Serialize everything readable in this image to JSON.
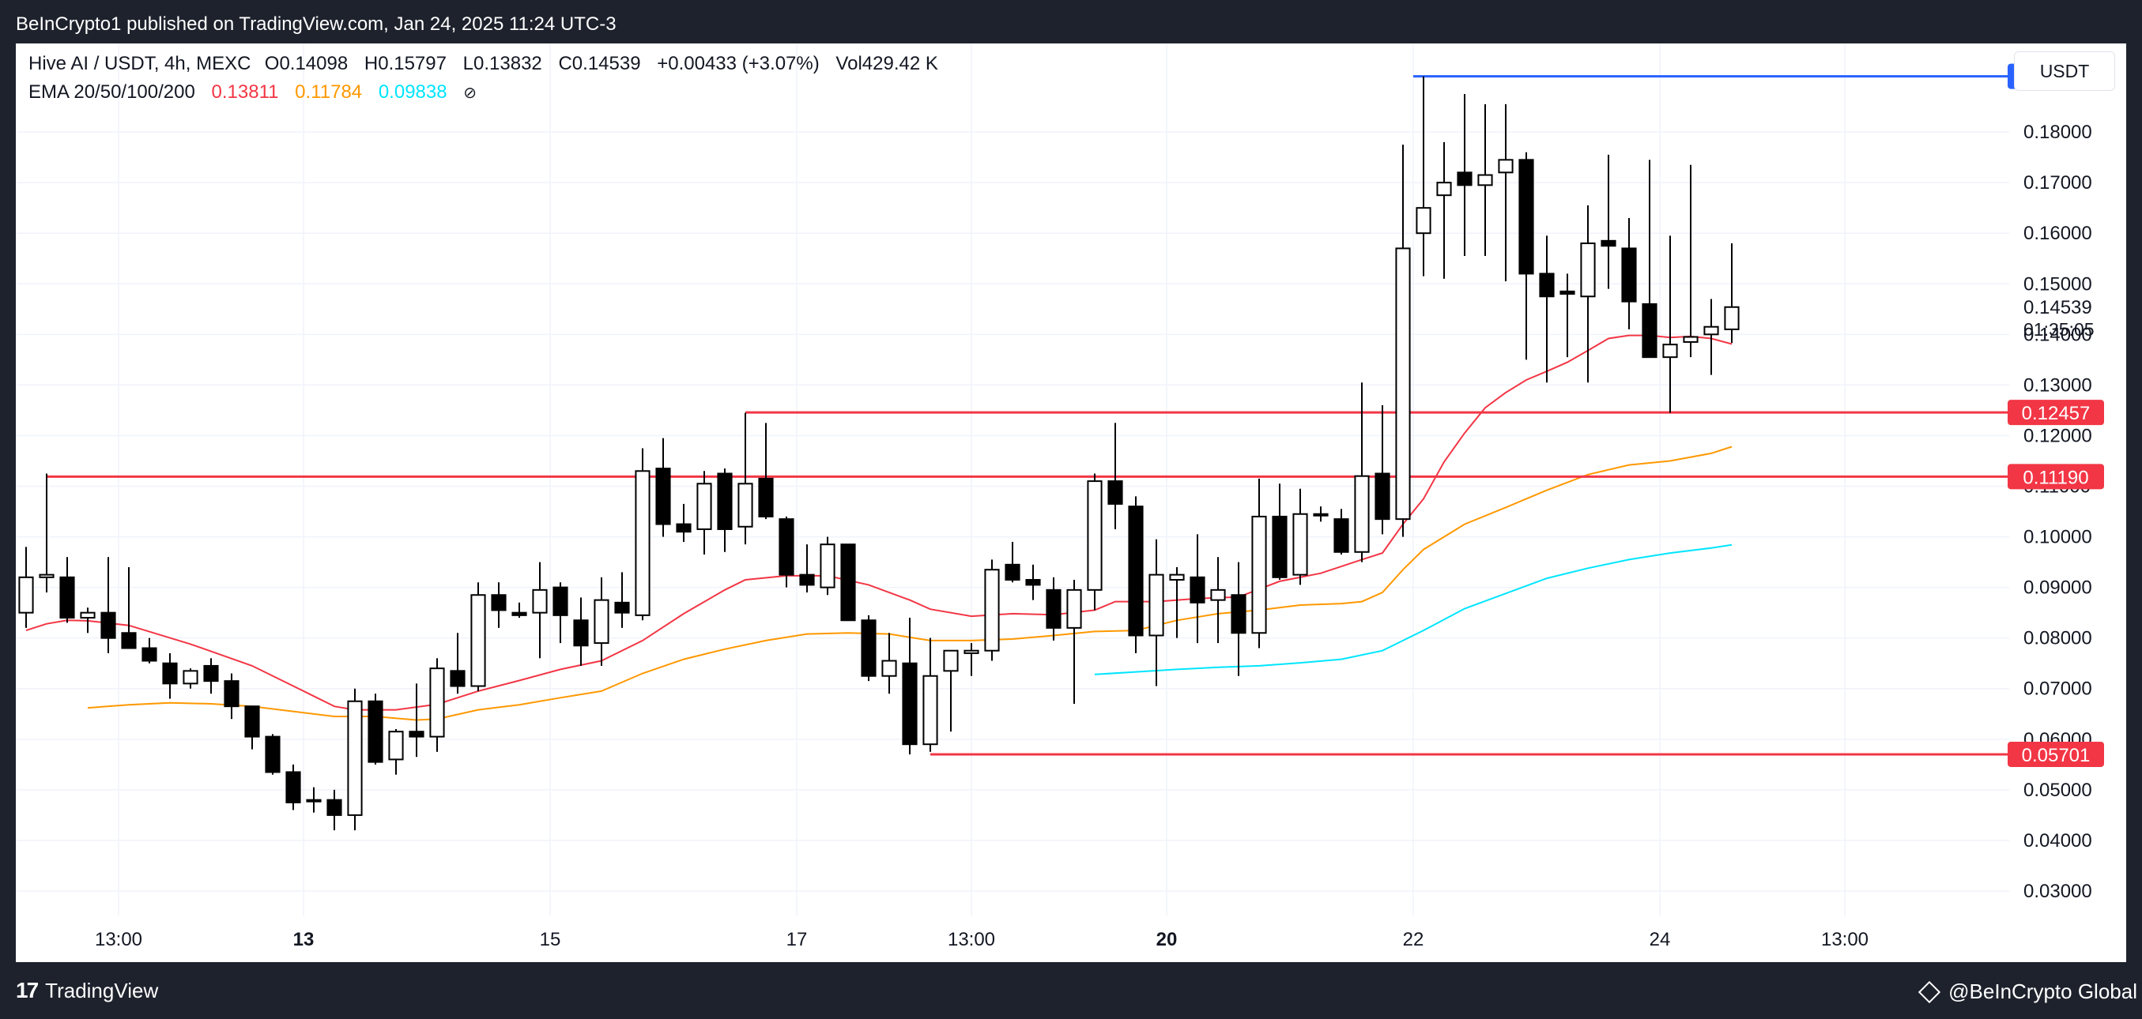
{
  "header": {
    "publisher_line": "BeInCrypto1 published on TradingView.com, Jan 24, 2025 11:24 UTC-3"
  },
  "legend": {
    "symbol": "Hive AI / USDT, 4h, MEXC",
    "open_label": "O",
    "open": "0.14098",
    "high_label": "H",
    "high": "0.15797",
    "low_label": "L",
    "low": "0.13832",
    "close_label": "C",
    "close": "0.14539",
    "change": "+0.00433 (+3.07%)",
    "volume": "Vol429.42 K",
    "ema_label": "EMA 20/50/100/200",
    "ema20": "0.13811",
    "ema50": "0.11784",
    "ema100": "0.09838",
    "ema_visibility_icon": "eye-off-icon"
  },
  "currency_button": "USDT",
  "footer": {
    "left_brand": "TradingView",
    "right_brand": "@BeInCrypto Global"
  },
  "colors": {
    "background": "#1e222d",
    "plot_bg": "#ffffff",
    "grid": "#f0f3fa",
    "candle_up_fill": "#ffffff",
    "candle_down_fill": "#000000",
    "level_red": "#f23645",
    "level_blue": "#2962ff",
    "ema20": "#f23645",
    "ema50": "#ff9800",
    "ema100": "#00e5ff"
  },
  "chart_data": {
    "type": "candlestick",
    "ylim": [
      0.025,
      0.1975
    ],
    "yticks": [
      0.03,
      0.04,
      0.05,
      0.06,
      0.07,
      0.08,
      0.09,
      0.1,
      0.11,
      0.12,
      0.13,
      0.14,
      0.15,
      0.16,
      0.17,
      0.18
    ],
    "ytick_labels": [
      "0.03000",
      "0.04000",
      "0.05000",
      "0.06000",
      "0.07000",
      "0.08000",
      "0.09000",
      "0.10000",
      "0.11000",
      "0.12000",
      "0.13000",
      "0.14000",
      "0.15000",
      "0.16000",
      "0.17000",
      "0.18000"
    ],
    "xticks": [
      {
        "index": 4.5,
        "label": "13:00",
        "bold": false
      },
      {
        "index": 13.5,
        "label": "13",
        "bold": true
      },
      {
        "index": 25.5,
        "label": "15",
        "bold": false
      },
      {
        "index": 37.5,
        "label": "17",
        "bold": false
      },
      {
        "index": 46,
        "label": "13:00",
        "bold": false
      },
      {
        "index": 55.5,
        "label": "20",
        "bold": true
      },
      {
        "index": 67.5,
        "label": "22",
        "bold": false
      },
      {
        "index": 79.5,
        "label": "24",
        "bold": false
      },
      {
        "index": 88.5,
        "label": "13:00",
        "bold": false
      }
    ],
    "n_slots": 97,
    "candles": [
      {
        "i": 0,
        "o": 0.085,
        "h": 0.098,
        "l": 0.082,
        "c": 0.092
      },
      {
        "i": 1,
        "o": 0.092,
        "h": 0.1125,
        "l": 0.089,
        "c": 0.0925
      },
      {
        "i": 2,
        "o": 0.092,
        "h": 0.096,
        "l": 0.083,
        "c": 0.084
      },
      {
        "i": 3,
        "o": 0.084,
        "h": 0.086,
        "l": 0.081,
        "c": 0.085
      },
      {
        "i": 4,
        "o": 0.085,
        "h": 0.096,
        "l": 0.077,
        "c": 0.08
      },
      {
        "i": 5,
        "o": 0.081,
        "h": 0.094,
        "l": 0.078,
        "c": 0.078
      },
      {
        "i": 6,
        "o": 0.078,
        "h": 0.08,
        "l": 0.075,
        "c": 0.0755
      },
      {
        "i": 7,
        "o": 0.075,
        "h": 0.077,
        "l": 0.068,
        "c": 0.071
      },
      {
        "i": 8,
        "o": 0.071,
        "h": 0.074,
        "l": 0.07,
        "c": 0.0735
      },
      {
        "i": 9,
        "o": 0.0745,
        "h": 0.076,
        "l": 0.069,
        "c": 0.0715
      },
      {
        "i": 10,
        "o": 0.0715,
        "h": 0.073,
        "l": 0.064,
        "c": 0.0665
      },
      {
        "i": 11,
        "o": 0.0665,
        "h": 0.0665,
        "l": 0.058,
        "c": 0.0605
      },
      {
        "i": 12,
        "o": 0.0605,
        "h": 0.061,
        "l": 0.053,
        "c": 0.0535
      },
      {
        "i": 13,
        "o": 0.0535,
        "h": 0.055,
        "l": 0.046,
        "c": 0.0475
      },
      {
        "i": 14,
        "o": 0.048,
        "h": 0.0505,
        "l": 0.0455,
        "c": 0.048
      },
      {
        "i": 15,
        "o": 0.048,
        "h": 0.05,
        "l": 0.042,
        "c": 0.045
      },
      {
        "i": 16,
        "o": 0.045,
        "h": 0.07,
        "l": 0.042,
        "c": 0.0675
      },
      {
        "i": 17,
        "o": 0.0675,
        "h": 0.069,
        "l": 0.055,
        "c": 0.0555
      },
      {
        "i": 18,
        "o": 0.056,
        "h": 0.062,
        "l": 0.053,
        "c": 0.0615
      },
      {
        "i": 19,
        "o": 0.0615,
        "h": 0.071,
        "l": 0.0565,
        "c": 0.0605
      },
      {
        "i": 20,
        "o": 0.0605,
        "h": 0.076,
        "l": 0.0575,
        "c": 0.074
      },
      {
        "i": 21,
        "o": 0.0735,
        "h": 0.081,
        "l": 0.069,
        "c": 0.0705
      },
      {
        "i": 22,
        "o": 0.0705,
        "h": 0.091,
        "l": 0.0695,
        "c": 0.0885
      },
      {
        "i": 23,
        "o": 0.0885,
        "h": 0.091,
        "l": 0.082,
        "c": 0.0855
      },
      {
        "i": 24,
        "o": 0.085,
        "h": 0.087,
        "l": 0.084,
        "c": 0.0845
      },
      {
        "i": 25,
        "o": 0.085,
        "h": 0.095,
        "l": 0.076,
        "c": 0.0895
      },
      {
        "i": 26,
        "o": 0.09,
        "h": 0.091,
        "l": 0.079,
        "c": 0.0845
      },
      {
        "i": 27,
        "o": 0.0835,
        "h": 0.088,
        "l": 0.0745,
        "c": 0.0785
      },
      {
        "i": 28,
        "o": 0.079,
        "h": 0.092,
        "l": 0.0745,
        "c": 0.0875
      },
      {
        "i": 29,
        "o": 0.087,
        "h": 0.093,
        "l": 0.082,
        "c": 0.085
      },
      {
        "i": 30,
        "o": 0.0845,
        "h": 0.1175,
        "l": 0.0835,
        "c": 0.113
      },
      {
        "i": 31,
        "o": 0.1135,
        "h": 0.1195,
        "l": 0.1,
        "c": 0.1025
      },
      {
        "i": 32,
        "o": 0.1025,
        "h": 0.1065,
        "l": 0.099,
        "c": 0.101
      },
      {
        "i": 33,
        "o": 0.1015,
        "h": 0.113,
        "l": 0.0965,
        "c": 0.1105
      },
      {
        "i": 34,
        "o": 0.1125,
        "h": 0.1135,
        "l": 0.097,
        "c": 0.1015
      },
      {
        "i": 35,
        "o": 0.102,
        "h": 0.1245,
        "l": 0.0985,
        "c": 0.1105
      },
      {
        "i": 36,
        "o": 0.1115,
        "h": 0.1225,
        "l": 0.1035,
        "c": 0.104
      },
      {
        "i": 37,
        "o": 0.1035,
        "h": 0.104,
        "l": 0.09,
        "c": 0.0925
      },
      {
        "i": 38,
        "o": 0.0925,
        "h": 0.0985,
        "l": 0.089,
        "c": 0.0905
      },
      {
        "i": 39,
        "o": 0.09,
        "h": 0.1,
        "l": 0.0885,
        "c": 0.0985
      },
      {
        "i": 40,
        "o": 0.0985,
        "h": 0.0985,
        "l": 0.0835,
        "c": 0.0835
      },
      {
        "i": 41,
        "o": 0.0835,
        "h": 0.0845,
        "l": 0.0715,
        "c": 0.0725
      },
      {
        "i": 42,
        "o": 0.0725,
        "h": 0.081,
        "l": 0.069,
        "c": 0.0755
      },
      {
        "i": 43,
        "o": 0.075,
        "h": 0.084,
        "l": 0.057,
        "c": 0.059
      },
      {
        "i": 44,
        "o": 0.059,
        "h": 0.08,
        "l": 0.0575,
        "c": 0.0725
      },
      {
        "i": 45,
        "o": 0.0735,
        "h": 0.0775,
        "l": 0.0615,
        "c": 0.0775
      },
      {
        "i": 46,
        "o": 0.077,
        "h": 0.079,
        "l": 0.0725,
        "c": 0.0775
      },
      {
        "i": 47,
        "o": 0.0775,
        "h": 0.0955,
        "l": 0.0755,
        "c": 0.0935
      },
      {
        "i": 48,
        "o": 0.0945,
        "h": 0.099,
        "l": 0.091,
        "c": 0.0915
      },
      {
        "i": 49,
        "o": 0.0915,
        "h": 0.0945,
        "l": 0.0875,
        "c": 0.0905
      },
      {
        "i": 50,
        "o": 0.0895,
        "h": 0.092,
        "l": 0.0795,
        "c": 0.082
      },
      {
        "i": 51,
        "o": 0.082,
        "h": 0.0915,
        "l": 0.067,
        "c": 0.0895
      },
      {
        "i": 52,
        "o": 0.0895,
        "h": 0.1125,
        "l": 0.0855,
        "c": 0.111
      },
      {
        "i": 53,
        "o": 0.111,
        "h": 0.1225,
        "l": 0.1015,
        "c": 0.1065
      },
      {
        "i": 54,
        "o": 0.106,
        "h": 0.108,
        "l": 0.077,
        "c": 0.0805
      },
      {
        "i": 55,
        "o": 0.0805,
        "h": 0.0995,
        "l": 0.0705,
        "c": 0.0925
      },
      {
        "i": 56,
        "o": 0.0915,
        "h": 0.094,
        "l": 0.08,
        "c": 0.0925
      },
      {
        "i": 57,
        "o": 0.092,
        "h": 0.1005,
        "l": 0.079,
        "c": 0.087
      },
      {
        "i": 58,
        "o": 0.0875,
        "h": 0.096,
        "l": 0.079,
        "c": 0.0895
      },
      {
        "i": 59,
        "o": 0.0885,
        "h": 0.095,
        "l": 0.0725,
        "c": 0.081
      },
      {
        "i": 60,
        "o": 0.081,
        "h": 0.1115,
        "l": 0.078,
        "c": 0.104
      },
      {
        "i": 61,
        "o": 0.104,
        "h": 0.1105,
        "l": 0.0915,
        "c": 0.092
      },
      {
        "i": 62,
        "o": 0.0925,
        "h": 0.1095,
        "l": 0.0905,
        "c": 0.1045
      },
      {
        "i": 63,
        "o": 0.1045,
        "h": 0.106,
        "l": 0.103,
        "c": 0.1045
      },
      {
        "i": 64,
        "o": 0.1035,
        "h": 0.1055,
        "l": 0.0965,
        "c": 0.097
      },
      {
        "i": 65,
        "o": 0.097,
        "h": 0.1305,
        "l": 0.095,
        "c": 0.112
      },
      {
        "i": 66,
        "o": 0.1125,
        "h": 0.126,
        "l": 0.1005,
        "c": 0.1035
      },
      {
        "i": 67,
        "o": 0.1035,
        "h": 0.1775,
        "l": 0.1,
        "c": 0.157
      },
      {
        "i": 68,
        "o": 0.16,
        "h": 0.191,
        "l": 0.1515,
        "c": 0.165
      },
      {
        "i": 69,
        "o": 0.1675,
        "h": 0.178,
        "l": 0.151,
        "c": 0.17
      },
      {
        "i": 70,
        "o": 0.172,
        "h": 0.1875,
        "l": 0.1555,
        "c": 0.1695
      },
      {
        "i": 71,
        "o": 0.1695,
        "h": 0.1855,
        "l": 0.1555,
        "c": 0.1715
      },
      {
        "i": 72,
        "o": 0.172,
        "h": 0.1855,
        "l": 0.1505,
        "c": 0.1745
      },
      {
        "i": 73,
        "o": 0.1745,
        "h": 0.176,
        "l": 0.135,
        "c": 0.152
      },
      {
        "i": 74,
        "o": 0.152,
        "h": 0.1595,
        "l": 0.1305,
        "c": 0.1475
      },
      {
        "i": 75,
        "o": 0.1485,
        "h": 0.152,
        "l": 0.1355,
        "c": 0.148
      },
      {
        "i": 76,
        "o": 0.1475,
        "h": 0.1655,
        "l": 0.1305,
        "c": 0.158
      },
      {
        "i": 77,
        "o": 0.1585,
        "h": 0.1755,
        "l": 0.149,
        "c": 0.1575
      },
      {
        "i": 78,
        "o": 0.157,
        "h": 0.163,
        "l": 0.141,
        "c": 0.1465
      },
      {
        "i": 79,
        "o": 0.146,
        "h": 0.1745,
        "l": 0.1355,
        "c": 0.1355
      },
      {
        "i": 80,
        "o": 0.1355,
        "h": 0.1595,
        "l": 0.1245,
        "c": 0.138
      },
      {
        "i": 81,
        "o": 0.1385,
        "h": 0.1735,
        "l": 0.1355,
        "c": 0.1395
      },
      {
        "i": 82,
        "o": 0.14,
        "h": 0.147,
        "l": 0.132,
        "c": 0.1415
      },
      {
        "i": 83,
        "o": 0.141,
        "h": 0.158,
        "l": 0.1383,
        "c": 0.1454
      }
    ],
    "horizontal_levels": [
      {
        "value": 0.19101,
        "label": "0.19101",
        "color": "blue",
        "from_index": 67.5
      },
      {
        "value": 0.12457,
        "label": "0.12457",
        "color": "red",
        "from_index": 35
      },
      {
        "value": 0.1119,
        "label": "0.11190",
        "color": "red",
        "from_index": 1
      },
      {
        "value": 0.05701,
        "label": "0.05701",
        "color": "red",
        "from_index": 44
      }
    ],
    "last_price": {
      "value": 0.14539,
      "label": "0.14539",
      "countdown": "01:35:05"
    },
    "ema_series": [
      {
        "name": "EMA 20",
        "color": "ema20",
        "points": [
          [
            0,
            0.0815
          ],
          [
            1,
            0.0828
          ],
          [
            2,
            0.0835
          ],
          [
            3,
            0.0834
          ],
          [
            5,
            0.0825
          ],
          [
            8,
            0.0788
          ],
          [
            11,
            0.0745
          ],
          [
            14,
            0.0685
          ],
          [
            15,
            0.0665
          ],
          [
            16,
            0.0658
          ],
          [
            18,
            0.0658
          ],
          [
            20,
            0.0669
          ],
          [
            22,
            0.0695
          ],
          [
            24,
            0.0716
          ],
          [
            26,
            0.0738
          ],
          [
            28,
            0.0755
          ],
          [
            30,
            0.0795
          ],
          [
            32,
            0.0848
          ],
          [
            34,
            0.0895
          ],
          [
            35,
            0.0915
          ],
          [
            37,
            0.0923
          ],
          [
            39,
            0.0923
          ],
          [
            41,
            0.0905
          ],
          [
            43,
            0.0875
          ],
          [
            44,
            0.0857
          ],
          [
            46,
            0.0843
          ],
          [
            48,
            0.0848
          ],
          [
            50,
            0.0846
          ],
          [
            52,
            0.0855
          ],
          [
            53,
            0.0872
          ],
          [
            55,
            0.0872
          ],
          [
            57,
            0.0878
          ],
          [
            59,
            0.0881
          ],
          [
            61,
            0.0912
          ],
          [
            63,
            0.0928
          ],
          [
            65,
            0.0955
          ],
          [
            66,
            0.0968
          ],
          [
            67,
            0.1025
          ],
          [
            68,
            0.1075
          ],
          [
            69,
            0.1148
          ],
          [
            70,
            0.1205
          ],
          [
            71,
            0.1255
          ],
          [
            72,
            0.1285
          ],
          [
            73,
            0.131
          ],
          [
            74,
            0.1327
          ],
          [
            75,
            0.1345
          ],
          [
            76,
            0.1368
          ],
          [
            77,
            0.1392
          ],
          [
            78,
            0.1398
          ],
          [
            79,
            0.1398
          ],
          [
            80,
            0.1394
          ],
          [
            81,
            0.1396
          ],
          [
            82,
            0.1392
          ],
          [
            83,
            0.1381
          ]
        ]
      },
      {
        "name": "EMA 50",
        "color": "ema50",
        "points": [
          [
            3,
            0.0662
          ],
          [
            5,
            0.0668
          ],
          [
            7,
            0.0672
          ],
          [
            9,
            0.067
          ],
          [
            11,
            0.0665
          ],
          [
            13,
            0.0655
          ],
          [
            15,
            0.0645
          ],
          [
            17,
            0.0645
          ],
          [
            19,
            0.0638
          ],
          [
            20,
            0.064
          ],
          [
            22,
            0.0658
          ],
          [
            24,
            0.0668
          ],
          [
            26,
            0.0682
          ],
          [
            28,
            0.0695
          ],
          [
            30,
            0.073
          ],
          [
            32,
            0.0758
          ],
          [
            34,
            0.0778
          ],
          [
            36,
            0.0795
          ],
          [
            38,
            0.0808
          ],
          [
            40,
            0.081
          ],
          [
            42,
            0.0808
          ],
          [
            44,
            0.0795
          ],
          [
            46,
            0.0795
          ],
          [
            48,
            0.0798
          ],
          [
            50,
            0.0805
          ],
          [
            52,
            0.0813
          ],
          [
            54,
            0.0815
          ],
          [
            56,
            0.0835
          ],
          [
            58,
            0.0848
          ],
          [
            60,
            0.0855
          ],
          [
            62,
            0.0865
          ],
          [
            64,
            0.0868
          ],
          [
            65,
            0.0872
          ],
          [
            66,
            0.089
          ],
          [
            67,
            0.0935
          ],
          [
            68,
            0.0975
          ],
          [
            70,
            0.1025
          ],
          [
            72,
            0.1058
          ],
          [
            74,
            0.1092
          ],
          [
            76,
            0.1123
          ],
          [
            78,
            0.1142
          ],
          [
            80,
            0.115
          ],
          [
            82,
            0.1165
          ],
          [
            83,
            0.1178
          ]
        ]
      },
      {
        "name": "EMA 100",
        "color": "ema100",
        "points": [
          [
            52,
            0.0728
          ],
          [
            54,
            0.0733
          ],
          [
            56,
            0.0738
          ],
          [
            58,
            0.0742
          ],
          [
            60,
            0.0745
          ],
          [
            62,
            0.0751
          ],
          [
            64,
            0.0758
          ],
          [
            66,
            0.0775
          ],
          [
            68,
            0.0815
          ],
          [
            70,
            0.0858
          ],
          [
            72,
            0.0888
          ],
          [
            74,
            0.0918
          ],
          [
            76,
            0.0938
          ],
          [
            78,
            0.0955
          ],
          [
            80,
            0.0968
          ],
          [
            82,
            0.0978
          ],
          [
            83,
            0.0984
          ]
        ]
      }
    ]
  }
}
